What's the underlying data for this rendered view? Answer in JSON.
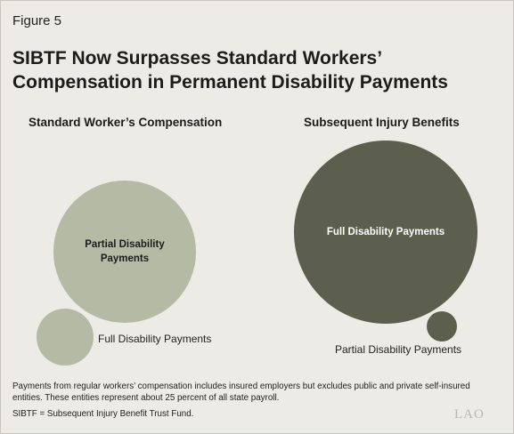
{
  "figure_label": "Figure 5",
  "title_line1": "SIBTF Now Surpasses Standard Workers’",
  "title_line2": "Compensation in Permanent Disability Payments",
  "colors": {
    "background": "#ecebe5",
    "standard_partial": "#b5baa5",
    "standard_full": "#b5baa5",
    "sibtf_full": "#5d5f4e",
    "sibtf_partial": "#5d5f4e"
  },
  "chart_data": {
    "type": "bubble",
    "panels": [
      {
        "title": "Standard Worker’s Compensation",
        "bubbles": [
          {
            "label": "Partial Disability Payments",
            "relative_size": "large",
            "label_position": "inside"
          },
          {
            "label": "Full Disability Payments",
            "relative_size": "small",
            "label_position": "outside-right"
          }
        ]
      },
      {
        "title": "Subsequent Injury Benefits",
        "bubbles": [
          {
            "label": "Full Disability Payments",
            "relative_size": "largest",
            "label_position": "inside"
          },
          {
            "label": "Partial Disability Payments",
            "relative_size": "smallest",
            "label_position": "below"
          }
        ]
      }
    ]
  },
  "notes": {
    "payments": "Payments from regular workers’ compensation includes insured employers but excludes public and private self-insured entities. These entities represent about 25 percent of all state payroll.",
    "sibtf": "SIBTF = Subsequent Injury Benefit Trust Fund."
  },
  "logo_text": "LAO"
}
